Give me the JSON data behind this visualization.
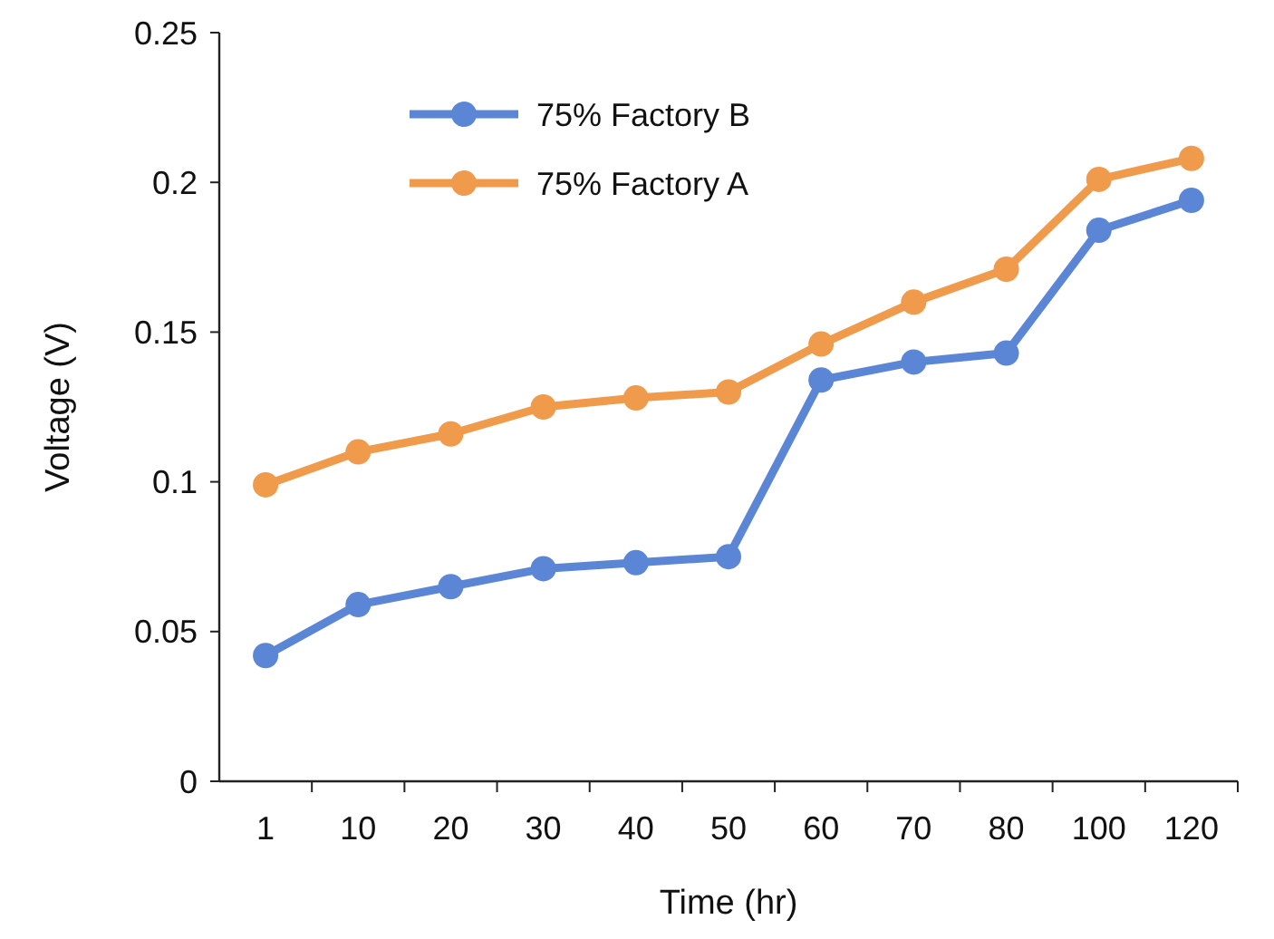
{
  "chart_data": {
    "type": "line",
    "xlabel": "Time (hr)",
    "ylabel": "Voltage (V)",
    "categories": [
      "1",
      "10",
      "20",
      "30",
      "40",
      "50",
      "60",
      "70",
      "80",
      "100",
      "120"
    ],
    "ylim": [
      0,
      0.25
    ],
    "yticks": [
      0,
      0.05,
      0.1,
      0.15,
      0.2,
      0.25
    ],
    "series": [
      {
        "name": "75% Factory B",
        "color": "#5b86d6",
        "values": [
          0.042,
          0.059,
          0.065,
          0.071,
          0.073,
          0.075,
          0.134,
          0.14,
          0.143,
          0.184,
          0.194
        ]
      },
      {
        "name": "75% Factory A",
        "color": "#f09a4c",
        "values": [
          0.099,
          0.11,
          0.116,
          0.125,
          0.128,
          0.13,
          0.146,
          0.16,
          0.171,
          0.201,
          0.208
        ]
      }
    ],
    "marker": "circle",
    "line_style": "solid",
    "legend": "top left",
    "grid": false
  }
}
